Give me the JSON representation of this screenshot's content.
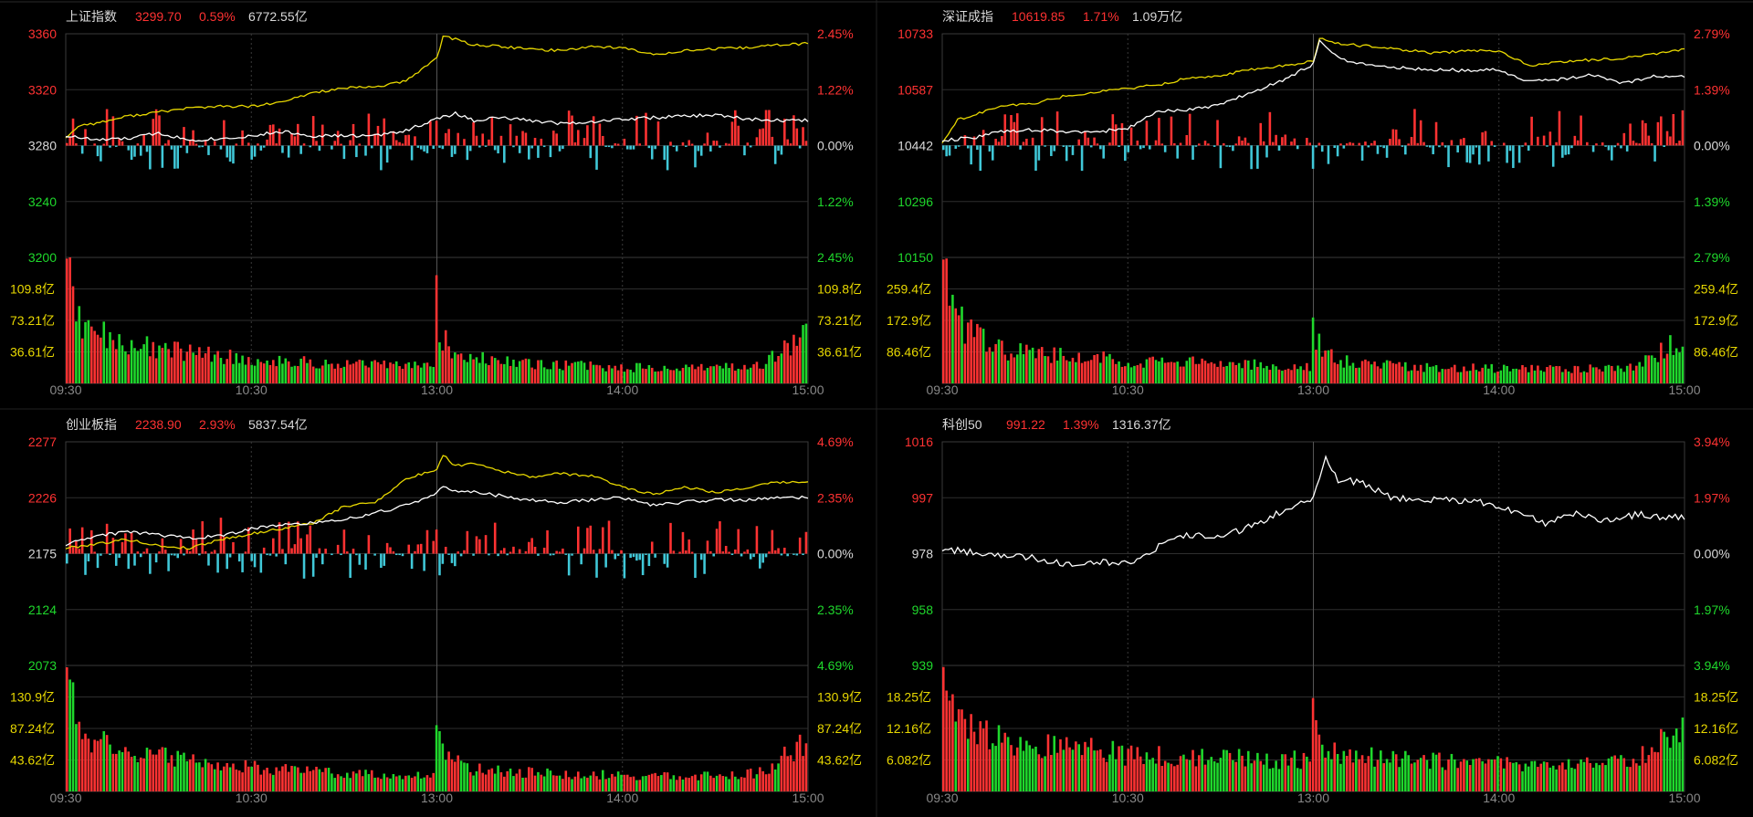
{
  "colors": {
    "background": "#000000",
    "frame": "#3a3a3a",
    "grid": "#2e2e2e",
    "price_line": "#ffffff",
    "avg_line": "#e8d800",
    "up": "#ff3232",
    "down": "#1fd82c",
    "flow_down": "#40c8d8",
    "volume_label": "#e8d800",
    "time_label": "#888888"
  },
  "chart_data": [
    {
      "type": "line",
      "index": "上证指数",
      "header": {
        "name": "上证指数",
        "price": "3299.70",
        "change": "0.59%",
        "turnover": "6772.55亿"
      },
      "price_axis": [
        "3360",
        "3320",
        "3280",
        "3240",
        "3200"
      ],
      "pct_axis": [
        "2.45%",
        "1.22%",
        "0.00%",
        "1.22%",
        "2.45%"
      ],
      "ylim": [
        3200,
        3360
      ],
      "prev_close": 3280,
      "volume_axis": [
        "109.8亿",
        "73.21亿",
        "36.61亿"
      ],
      "volume_max": 146.4,
      "time_ticks": [
        "09:30",
        "10:30",
        "13:00",
        "14:00",
        "15:00"
      ],
      "has_avg_line": true,
      "has_flow_bars": true,
      "price_series": [
        [
          0,
          3287
        ],
        [
          10,
          3284
        ],
        [
          20,
          3285
        ],
        [
          30,
          3289
        ],
        [
          40,
          3284
        ],
        [
          50,
          3285
        ],
        [
          60,
          3287
        ],
        [
          70,
          3290
        ],
        [
          80,
          3287
        ],
        [
          90,
          3287
        ],
        [
          100,
          3287
        ],
        [
          110,
          3291
        ],
        [
          120,
          3299
        ],
        [
          126,
          3303
        ],
        [
          132,
          3298
        ],
        [
          140,
          3300
        ],
        [
          150,
          3298
        ],
        [
          160,
          3296
        ],
        [
          170,
          3297
        ],
        [
          180,
          3299
        ],
        [
          190,
          3300
        ],
        [
          200,
          3301
        ],
        [
          210,
          3302
        ],
        [
          220,
          3299
        ],
        [
          230,
          3298
        ],
        [
          240,
          3298
        ]
      ],
      "avg_series": [
        [
          0,
          3286
        ],
        [
          5,
          3295
        ],
        [
          10,
          3296
        ],
        [
          20,
          3301
        ],
        [
          30,
          3304
        ],
        [
          40,
          3307
        ],
        [
          50,
          3308
        ],
        [
          60,
          3308
        ],
        [
          70,
          3311
        ],
        [
          80,
          3318
        ],
        [
          90,
          3321
        ],
        [
          100,
          3322
        ],
        [
          110,
          3326
        ],
        [
          120,
          3343
        ],
        [
          122,
          3358
        ],
        [
          126,
          3356
        ],
        [
          132,
          3352
        ],
        [
          140,
          3351
        ],
        [
          150,
          3349
        ],
        [
          160,
          3348
        ],
        [
          170,
          3351
        ],
        [
          180,
          3350
        ],
        [
          190,
          3345
        ],
        [
          200,
          3348
        ],
        [
          210,
          3349
        ],
        [
          220,
          3350
        ],
        [
          230,
          3352
        ],
        [
          240,
          3353
        ]
      ],
      "volume_profile": [
        [
          0,
          145
        ],
        [
          3,
          80
        ],
        [
          8,
          62
        ],
        [
          20,
          45
        ],
        [
          50,
          32
        ],
        [
          60,
          28
        ],
        [
          90,
          22
        ],
        [
          119,
          20
        ],
        [
          120,
          100
        ],
        [
          121,
          60
        ],
        [
          124,
          42
        ],
        [
          130,
          30
        ],
        [
          150,
          22
        ],
        [
          200,
          17
        ],
        [
          225,
          20
        ],
        [
          240,
          55
        ]
      ]
    },
    {
      "type": "line",
      "index": "深证成指",
      "header": {
        "name": "深证成指",
        "price": "10619.85",
        "change": "1.71%",
        "turnover": "1.09万亿"
      },
      "price_axis": [
        "10733",
        "10587",
        "10442",
        "10296",
        "10150"
      ],
      "pct_axis": [
        "2.79%",
        "1.39%",
        "0.00%",
        "1.39%",
        "2.79%"
      ],
      "ylim": [
        10150,
        10733
      ],
      "prev_close": 10442,
      "volume_axis": [
        "259.4亿",
        "172.9亿",
        "86.46亿"
      ],
      "volume_max": 345.8,
      "time_ticks": [
        "09:30",
        "10:30",
        "13:00",
        "14:00",
        "15:00"
      ],
      "has_avg_line": true,
      "has_flow_bars": true,
      "price_series": [
        [
          0,
          10455
        ],
        [
          10,
          10462
        ],
        [
          20,
          10480
        ],
        [
          30,
          10482
        ],
        [
          40,
          10478
        ],
        [
          50,
          10477
        ],
        [
          60,
          10487
        ],
        [
          70,
          10530
        ],
        [
          80,
          10536
        ],
        [
          90,
          10548
        ],
        [
          100,
          10581
        ],
        [
          110,
          10610
        ],
        [
          120,
          10655
        ],
        [
          122,
          10714
        ],
        [
          126,
          10681
        ],
        [
          132,
          10660
        ],
        [
          140,
          10648
        ],
        [
          150,
          10643
        ],
        [
          160,
          10640
        ],
        [
          170,
          10637
        ],
        [
          180,
          10640
        ],
        [
          190,
          10607
        ],
        [
          200,
          10615
        ],
        [
          210,
          10626
        ],
        [
          220,
          10604
        ],
        [
          230,
          10622
        ],
        [
          240,
          10622
        ]
      ],
      "avg_series": [
        [
          0,
          10450
        ],
        [
          5,
          10508
        ],
        [
          10,
          10522
        ],
        [
          20,
          10545
        ],
        [
          30,
          10552
        ],
        [
          40,
          10571
        ],
        [
          50,
          10582
        ],
        [
          60,
          10590
        ],
        [
          70,
          10600
        ],
        [
          80,
          10618
        ],
        [
          90,
          10625
        ],
        [
          100,
          10640
        ],
        [
          110,
          10650
        ],
        [
          120,
          10661
        ],
        [
          122,
          10721
        ],
        [
          126,
          10710
        ],
        [
          132,
          10704
        ],
        [
          140,
          10700
        ],
        [
          150,
          10690
        ],
        [
          160,
          10682
        ],
        [
          170,
          10689
        ],
        [
          180,
          10688
        ],
        [
          190,
          10650
        ],
        [
          200,
          10660
        ],
        [
          210,
          10665
        ],
        [
          220,
          10670
        ],
        [
          230,
          10680
        ],
        [
          240,
          10693
        ]
      ],
      "volume_profile": [
        [
          0,
          340
        ],
        [
          3,
          200
        ],
        [
          8,
          140
        ],
        [
          20,
          90
        ],
        [
          50,
          70
        ],
        [
          60,
          62
        ],
        [
          90,
          55
        ],
        [
          119,
          45
        ],
        [
          120,
          245
        ],
        [
          121,
          130
        ],
        [
          124,
          80
        ],
        [
          130,
          60
        ],
        [
          150,
          45
        ],
        [
          200,
          38
        ],
        [
          225,
          45
        ],
        [
          240,
          125
        ]
      ]
    },
    {
      "type": "line",
      "index": "创业板指",
      "header": {
        "name": "创业板指",
        "price": "2238.90",
        "change": "2.93%",
        "turnover": "5837.54亿"
      },
      "price_axis": [
        "2277",
        "2226",
        "2175",
        "2124",
        "2073"
      ],
      "pct_axis": [
        "4.69%",
        "2.35%",
        "0.00%",
        "2.35%",
        "4.69%"
      ],
      "ylim": [
        2073,
        2277
      ],
      "prev_close": 2175,
      "volume_axis": [
        "130.9亿",
        "87.24亿",
        "43.62亿"
      ],
      "volume_max": 174.5,
      "time_ticks": [
        "09:30",
        "10:30",
        "13:00",
        "14:00",
        "15:00"
      ],
      "has_avg_line": true,
      "has_flow_bars": true,
      "price_series": [
        [
          0,
          2183
        ],
        [
          10,
          2191
        ],
        [
          20,
          2195
        ],
        [
          30,
          2192
        ],
        [
          40,
          2189
        ],
        [
          50,
          2191
        ],
        [
          60,
          2198
        ],
        [
          70,
          2201
        ],
        [
          80,
          2203
        ],
        [
          90,
          2206
        ],
        [
          100,
          2212
        ],
        [
          110,
          2219
        ],
        [
          120,
          2230
        ],
        [
          122,
          2236
        ],
        [
          126,
          2232
        ],
        [
          132,
          2231
        ],
        [
          140,
          2228
        ],
        [
          150,
          2224
        ],
        [
          160,
          2222
        ],
        [
          170,
          2224
        ],
        [
          180,
          2226
        ],
        [
          190,
          2219
        ],
        [
          200,
          2222
        ],
        [
          210,
          2224
        ],
        [
          220,
          2224
        ],
        [
          230,
          2226
        ],
        [
          240,
          2226
        ]
      ],
      "avg_series": [
        [
          0,
          2180
        ],
        [
          10,
          2184
        ],
        [
          20,
          2188
        ],
        [
          30,
          2182
        ],
        [
          40,
          2180
        ],
        [
          50,
          2188
        ],
        [
          60,
          2193
        ],
        [
          70,
          2198
        ],
        [
          80,
          2203
        ],
        [
          90,
          2218
        ],
        [
          100,
          2222
        ],
        [
          110,
          2243
        ],
        [
          120,
          2252
        ],
        [
          122,
          2265
        ],
        [
          126,
          2255
        ],
        [
          132,
          2258
        ],
        [
          140,
          2251
        ],
        [
          150,
          2245
        ],
        [
          160,
          2248
        ],
        [
          170,
          2246
        ],
        [
          180,
          2236
        ],
        [
          190,
          2229
        ],
        [
          200,
          2236
        ],
        [
          210,
          2231
        ],
        [
          220,
          2235
        ],
        [
          230,
          2240
        ],
        [
          240,
          2240
        ]
      ],
      "volume_profile": [
        [
          0,
          172
        ],
        [
          3,
          100
        ],
        [
          8,
          75
        ],
        [
          20,
          55
        ],
        [
          50,
          38
        ],
        [
          60,
          33
        ],
        [
          90,
          25
        ],
        [
          119,
          22
        ],
        [
          120,
          112
        ],
        [
          121,
          68
        ],
        [
          124,
          45
        ],
        [
          130,
          32
        ],
        [
          150,
          26
        ],
        [
          200,
          20
        ],
        [
          225,
          26
        ],
        [
          240,
          70
        ]
      ]
    },
    {
      "type": "line",
      "index": "科创50",
      "header": {
        "name": "科创50",
        "price": "991.22",
        "change": "1.39%",
        "turnover": "1316.37亿"
      },
      "price_axis": [
        "1016",
        "997",
        "978",
        "958",
        "939"
      ],
      "pct_axis": [
        "3.94%",
        "1.97%",
        "0.00%",
        "1.97%",
        "3.94%"
      ],
      "ylim": [
        939,
        1016
      ],
      "prev_close": 978,
      "volume_axis": [
        "18.25亿",
        "12.16亿",
        "6.082亿"
      ],
      "volume_max": 24.3,
      "time_ticks": [
        "09:30",
        "10:30",
        "13:00",
        "14:00",
        "15:00"
      ],
      "has_avg_line": false,
      "has_flow_bars": false,
      "avg_series": [
        [
          0,
          979
        ],
        [
          10,
          978
        ],
        [
          20,
          977
        ],
        [
          30,
          976
        ],
        [
          40,
          974
        ],
        [
          50,
          975
        ],
        [
          60,
          974
        ],
        [
          70,
          980
        ],
        [
          80,
          984
        ],
        [
          90,
          983
        ],
        [
          100,
          987
        ],
        [
          110,
          992
        ],
        [
          120,
          997
        ],
        [
          124,
          1011
        ],
        [
          128,
          1003
        ],
        [
          135,
          1002
        ],
        [
          145,
          997
        ],
        [
          155,
          996
        ],
        [
          165,
          996
        ],
        [
          175,
          995
        ],
        [
          185,
          992
        ],
        [
          195,
          988
        ],
        [
          205,
          991
        ],
        [
          215,
          989
        ],
        [
          225,
          991
        ],
        [
          235,
          990
        ],
        [
          240,
          990
        ]
      ],
      "volume_profile": [
        [
          0,
          24
        ],
        [
          3,
          15
        ],
        [
          8,
          12
        ],
        [
          20,
          10
        ],
        [
          50,
          8
        ],
        [
          60,
          7
        ],
        [
          90,
          6.5
        ],
        [
          119,
          6
        ],
        [
          120,
          20
        ],
        [
          121,
          12
        ],
        [
          124,
          9
        ],
        [
          130,
          7
        ],
        [
          150,
          6
        ],
        [
          200,
          5
        ],
        [
          225,
          6
        ],
        [
          240,
          13
        ]
      ]
    }
  ]
}
